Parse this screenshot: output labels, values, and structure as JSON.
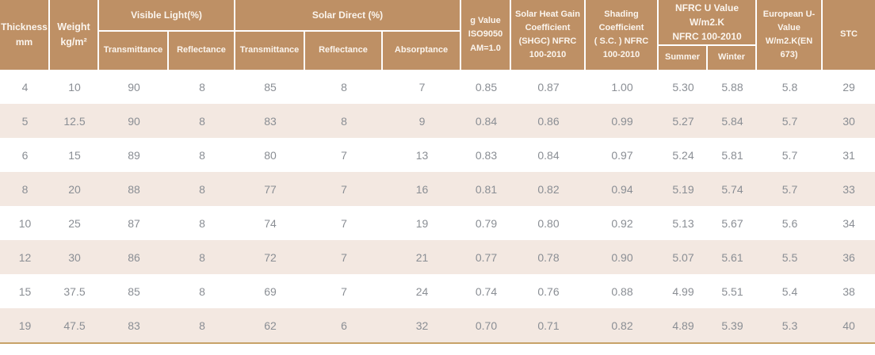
{
  "colors": {
    "header_bg": "#BE9065",
    "header_text": "#FBF5EE",
    "row_bg": "#FFFFFF",
    "row_alt_bg": "#F3E8E1",
    "data_text": "#8A8E94",
    "bottom_border": "#C8A268"
  },
  "header": {
    "thickness": "Thickness\nmm",
    "weight": "Weight\nkg/m²",
    "visible_light": {
      "group": "Visible Light(%)",
      "transmittance": "Transmittance",
      "reflectance": "Reflectance"
    },
    "solar_direct": {
      "group": "Solar Direct (%)",
      "transmittance": "Transmittance",
      "reflectance": "Reflectance",
      "absorptance": "Absorptance"
    },
    "g_value": "g Value\nISO9050\nAM=1.0",
    "shgc": "Solar Heat Gain\nCoefficient\n(SHGC) NFRC\n100-2010",
    "shading": "Shading\nCoefficient\n( S.C. ) NFRC\n100-2010",
    "nfrc_u": {
      "group": "NFRC U Value\nW/m2.K\nNFRC 100-2010",
      "summer": "Summer",
      "winter": "Winter"
    },
    "european_u": "European U-\nValue\nW/m2.K(EN\n673)",
    "stc": "STC"
  },
  "rows": [
    [
      "4",
      "10",
      "90",
      "8",
      "85",
      "8",
      "7",
      "0.85",
      "0.87",
      "1.00",
      "5.30",
      "5.88",
      "5.8",
      "29"
    ],
    [
      "5",
      "12.5",
      "90",
      "8",
      "83",
      "8",
      "9",
      "0.84",
      "0.86",
      "0.99",
      "5.27",
      "5.84",
      "5.7",
      "30"
    ],
    [
      "6",
      "15",
      "89",
      "8",
      "80",
      "7",
      "13",
      "0.83",
      "0.84",
      "0.97",
      "5.24",
      "5.81",
      "5.7",
      "31"
    ],
    [
      "8",
      "20",
      "88",
      "8",
      "77",
      "7",
      "16",
      "0.81",
      "0.82",
      "0.94",
      "5.19",
      "5.74",
      "5.7",
      "33"
    ],
    [
      "10",
      "25",
      "87",
      "8",
      "74",
      "7",
      "19",
      "0.79",
      "0.80",
      "0.92",
      "5.13",
      "5.67",
      "5.6",
      "34"
    ],
    [
      "12",
      "30",
      "86",
      "8",
      "72",
      "7",
      "21",
      "0.77",
      "0.78",
      "0.90",
      "5.07",
      "5.61",
      "5.5",
      "36"
    ],
    [
      "15",
      "37.5",
      "85",
      "8",
      "69",
      "7",
      "24",
      "0.74",
      "0.76",
      "0.88",
      "4.99",
      "5.51",
      "5.4",
      "38"
    ],
    [
      "19",
      "47.5",
      "83",
      "8",
      "62",
      "6",
      "32",
      "0.70",
      "0.71",
      "0.82",
      "4.89",
      "5.39",
      "5.3",
      "40"
    ]
  ]
}
